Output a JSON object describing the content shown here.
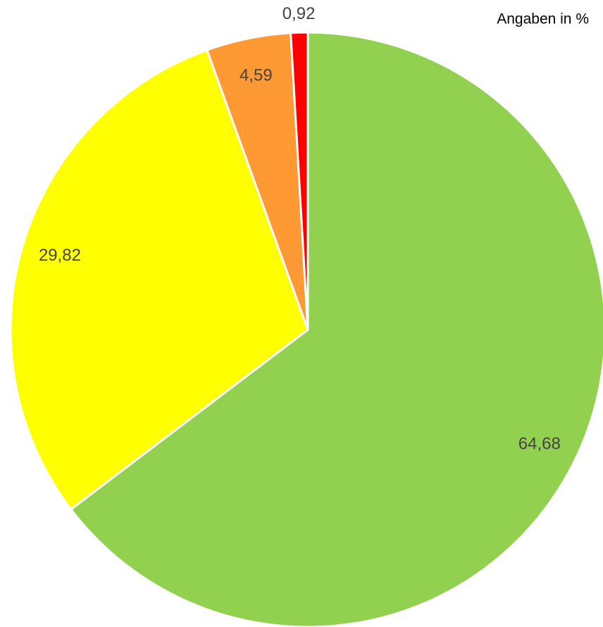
{
  "chart_data": {
    "type": "pie",
    "annotation": "Angaben in %",
    "values": [
      64.68,
      29.82,
      4.59,
      0.92
    ],
    "value_labels": [
      "64,68",
      "29,82",
      "4,59",
      "0,92"
    ],
    "colors": [
      "#92d050",
      "#ffff00",
      "#ff9933",
      "#ff0000"
    ]
  }
}
